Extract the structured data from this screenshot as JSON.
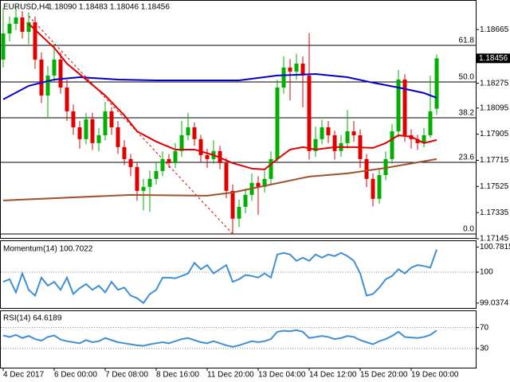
{
  "chart_data": [
    {
      "type": "candlestick",
      "title": "EURUSD,H4",
      "ohlc_text": "1.18090 1.18483 1.18046 1.18456",
      "categories": [
        "4 Dec 2017",
        null,
        null,
        null,
        null,
        null,
        null,
        null,
        "6 Dec 00:00",
        null,
        null,
        null,
        null,
        null,
        null,
        null,
        "7 Dec 08:00",
        null,
        null,
        null,
        null,
        null,
        null,
        null,
        "8 Dec 16:00",
        null,
        null,
        null,
        null,
        null,
        null,
        null,
        "11 Dec 20:00",
        null,
        null,
        null,
        null,
        null,
        null,
        null,
        "13 Dec 04:00",
        null,
        null,
        null,
        null,
        null,
        null,
        null,
        "14 Dec 12:00",
        null,
        null,
        null,
        null,
        null,
        null,
        null,
        "15 Dec 20:00",
        null,
        null,
        null,
        null,
        null,
        null,
        null,
        "19 Dec 00:00",
        null,
        null,
        null,
        null
      ],
      "open": [
        1.18447,
        1.18637,
        1.18707,
        1.18753,
        1.18649,
        1.18718,
        1.18447,
        1.18186,
        1.18331,
        1.18447,
        1.18244,
        1.18071,
        1.17955,
        1.17869,
        1.18013,
        1.1784,
        1.17897,
        1.18071,
        1.17955,
        1.17811,
        1.17724,
        1.17666,
        1.17493,
        1.17522,
        1.1758,
        1.17637,
        1.17724,
        1.17695,
        1.17782,
        1.17897,
        1.17955,
        1.17869,
        1.17753,
        1.17724,
        1.17782,
        1.17695,
        1.17493,
        1.17291,
        1.17377,
        1.17464,
        1.17551,
        1.17522,
        1.1758,
        1.17724,
        1.18244,
        1.18389,
        1.1836,
        1.18418,
        1.18331,
        1.17782,
        1.17869,
        1.17955,
        1.17897,
        1.17782,
        1.1784,
        1.17926,
        1.17897,
        1.17724,
        1.1758,
        1.17435,
        1.17608,
        1.17724,
        1.17926,
        1.18302,
        1.17897,
        1.17869,
        1.1784,
        1.17897,
        1.1809
      ],
      "high": [
        1.18822,
        1.1876,
        1.1883,
        1.188,
        1.1879,
        1.1876,
        1.185,
        1.184,
        1.1856,
        1.185,
        1.183,
        1.1812,
        1.18,
        1.1806,
        1.1806,
        1.1795,
        1.1814,
        1.181,
        1.18,
        1.1786,
        1.1776,
        1.177,
        1.1758,
        1.1764,
        1.177,
        1.1778,
        1.1776,
        1.1784,
        1.18,
        1.1806,
        1.1799,
        1.179,
        1.178,
        1.1786,
        1.1782,
        1.1773,
        1.1754,
        1.1743,
        1.1751,
        1.1762,
        1.176,
        1.1764,
        1.1778,
        1.183,
        1.1847,
        1.1845,
        1.1849,
        1.1847,
        1.1864,
        1.1796,
        1.1801,
        1.18,
        1.1793,
        1.179,
        1.1808,
        1.18,
        1.1794,
        1.1776,
        1.1762,
        1.1766,
        1.1778,
        1.1798,
        1.1837,
        1.1834,
        1.1794,
        1.179,
        1.1795,
        1.1833,
        1.18483
      ],
      "low": [
        1.1839,
        1.1858,
        1.1866,
        1.186,
        1.1856,
        1.1838,
        1.1813,
        1.1802,
        1.1829,
        1.182,
        1.18,
        1.179,
        1.178,
        1.1783,
        1.1779,
        1.1778,
        1.1786,
        1.179,
        1.1776,
        1.1768,
        1.176,
        1.1742,
        1.1735,
        1.1734,
        1.1754,
        1.176,
        1.1766,
        1.1766,
        1.1774,
        1.1786,
        1.1782,
        1.177,
        1.1766,
        1.1769,
        1.1765,
        1.1744,
        1.1718,
        1.1723,
        1.1733,
        1.1742,
        1.1732,
        1.1748,
        1.1754,
        1.177,
        1.182,
        1.1815,
        1.183,
        1.181,
        1.1772,
        1.1774,
        1.1783,
        1.1784,
        1.1772,
        1.1774,
        1.178,
        1.1785,
        1.1766,
        1.1752,
        1.1738,
        1.174,
        1.1757,
        1.1769,
        1.1788,
        1.1785,
        1.178,
        1.1779,
        1.1781,
        1.1788,
        1.18046
      ],
      "close": [
        1.18637,
        1.18707,
        1.18753,
        1.18649,
        1.18718,
        1.18447,
        1.18186,
        1.18331,
        1.18447,
        1.18244,
        1.18071,
        1.17955,
        1.17869,
        1.18013,
        1.1784,
        1.17897,
        1.18071,
        1.17955,
        1.17811,
        1.17724,
        1.17666,
        1.17493,
        1.17522,
        1.1758,
        1.17637,
        1.17724,
        1.17695,
        1.17782,
        1.17897,
        1.17955,
        1.17869,
        1.17753,
        1.17724,
        1.17782,
        1.17695,
        1.17493,
        1.17291,
        1.17377,
        1.17464,
        1.17551,
        1.17522,
        1.1758,
        1.17724,
        1.18244,
        1.18389,
        1.1836,
        1.18418,
        1.18331,
        1.17782,
        1.17869,
        1.17955,
        1.17897,
        1.17782,
        1.1784,
        1.17926,
        1.17897,
        1.17724,
        1.1758,
        1.17435,
        1.17608,
        1.17724,
        1.17926,
        1.18302,
        1.17897,
        1.17869,
        1.1784,
        1.17897,
        1.18071,
        1.18456
      ],
      "up_color": "#00b000",
      "down_color": "#e00000",
      "ylim": [
        1.17145,
        1.1888
      ],
      "yticks": [
        1.18665,
        1.18275,
        1.18095,
        1.17905,
        1.17715,
        1.17525,
        1.17335,
        1.17145
      ],
      "moving_averages": [
        {
          "color": "#0000cc",
          "x": [
            0,
            4,
            8,
            12,
            18,
            24,
            32,
            37,
            43,
            49,
            54,
            58,
            62,
            66,
            68
          ],
          "values": [
            1.18158,
            1.18256,
            1.18302,
            1.18319,
            1.18302,
            1.18296,
            1.18296,
            1.18296,
            1.18331,
            1.18342,
            1.18319,
            1.18279,
            1.18244,
            1.18204,
            1.18169
          ]
        },
        {
          "color": "#e00000",
          "x": [
            4,
            6,
            8,
            10,
            13,
            16,
            19,
            21,
            24,
            27,
            30,
            33,
            36,
            39,
            41,
            43,
            45,
            47,
            49,
            52,
            55,
            58,
            60,
            62,
            64,
            66,
            68
          ],
          "values": [
            1.18707,
            1.1862,
            1.18533,
            1.18418,
            1.18302,
            1.18186,
            1.18042,
            1.17926,
            1.17851,
            1.17793,
            1.17793,
            1.17753,
            1.17695,
            1.17655,
            1.17649,
            1.17724,
            1.17793,
            1.17811,
            1.17793,
            1.17811,
            1.17811,
            1.17805,
            1.1784,
            1.17897,
            1.17886,
            1.1784,
            1.17863
          ]
        },
        {
          "color": "#a0522d",
          "x": [
            0,
            20,
            32,
            36,
            42,
            48,
            54,
            60,
            68
          ],
          "values": [
            1.17423,
            1.17464,
            1.17458,
            1.17481,
            1.17539,
            1.17597,
            1.1762,
            1.1766,
            1.17724
          ]
        }
      ],
      "trendline": {
        "color": "#e00000",
        "x": [
          4,
          36
        ],
        "values": [
          1.18764,
          1.1718
        ]
      },
      "fib_levels": [
        {
          "label": "61.8",
          "value": 1.1855
        },
        {
          "label": "50.0",
          "value": 1.18284
        },
        {
          "label": "38.2",
          "value": 1.18024
        },
        {
          "label": "23.6",
          "value": 1.177
        },
        {
          "label": "0.0",
          "value": 1.1718
        }
      ]
    },
    {
      "type": "line",
      "title": "Momentum(14) 100.7022",
      "color": "#3d8fd6",
      "values": [
        99.7,
        99.78,
        99.37,
        99.96,
        99.45,
        99.27,
        99.83,
        99.58,
        99.7,
        99.45,
        99.83,
        99.32,
        99.5,
        99.63,
        99.45,
        99.58,
        99.37,
        99.7,
        99.45,
        99.52,
        99.27,
        99.19,
        99.04,
        99.32,
        99.45,
        99.83,
        99.83,
        99.81,
        99.88,
        99.96,
        100.29,
        100.09,
        100.22,
        99.96,
        100.09,
        100.22,
        99.7,
        99.78,
        99.91,
        99.88,
        99.83,
        99.96,
        99.83,
        100.55,
        100.6,
        100.55,
        100.35,
        100.45,
        100.35,
        100.55,
        100.45,
        100.55,
        100.5,
        100.6,
        100.5,
        100.35,
        99.96,
        99.27,
        99.32,
        99.52,
        99.78,
        99.88,
        100.09,
        99.96,
        100.14,
        100.22,
        100.19,
        100.14,
        100.7022
      ],
      "ylim": [
        98.86,
        100.99
      ],
      "yticks": [
        100.7815,
        100,
        99.0374
      ],
      "levels": [
        100
      ]
    },
    {
      "type": "line",
      "title": "RSI(14) 64.6189",
      "color": "#3d8fd6",
      "values": [
        55,
        52,
        56,
        50,
        54,
        48,
        45,
        52,
        55,
        47,
        44,
        42,
        40,
        46,
        42,
        44,
        50,
        46,
        42,
        40,
        38,
        36,
        35,
        38,
        40,
        42,
        40,
        44,
        48,
        50,
        46,
        42,
        40,
        44,
        40,
        36,
        33,
        36,
        40,
        44,
        42,
        44,
        48,
        62,
        64,
        63,
        65,
        62,
        50,
        52,
        54,
        52,
        48,
        50,
        54,
        52,
        46,
        42,
        38,
        44,
        48,
        54,
        62,
        52,
        51,
        50,
        52,
        56,
        64.6189
      ],
      "ylim": [
        0,
        100
      ],
      "yticks": [
        70,
        30
      ],
      "levels": [
        70,
        30
      ]
    }
  ]
}
